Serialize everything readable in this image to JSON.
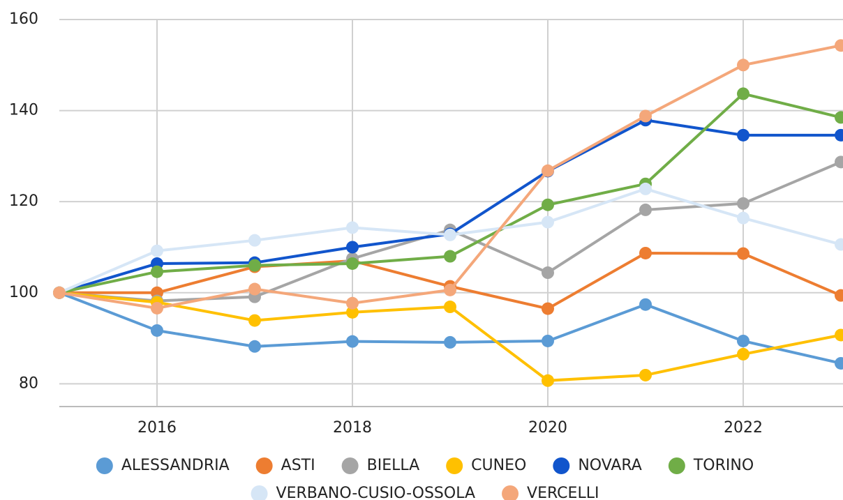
{
  "chart_data": {
    "type": "line",
    "x": [
      2015,
      2016,
      2017,
      2018,
      2019,
      2020,
      2021,
      2022,
      2023
    ],
    "xlim": [
      2015,
      2023
    ],
    "xticks": [
      2016,
      2018,
      2020,
      2022
    ],
    "ylim": [
      75,
      160
    ],
    "yticks": [
      80,
      100,
      120,
      140,
      160
    ],
    "grid": true,
    "legend": "bottom",
    "series": [
      {
        "name": "ALESSANDRIA",
        "color": "#5b9bd5",
        "values": [
          100,
          91.7,
          88.2,
          89.3,
          89.1,
          89.4,
          97.4,
          89.4,
          84.5
        ]
      },
      {
        "name": "ASTI",
        "color": "#ed7d31",
        "values": [
          100,
          100,
          105.7,
          107,
          101.4,
          96.5,
          108.7,
          108.6,
          99.4
        ]
      },
      {
        "name": "BIELLA",
        "color": "#a5a5a5",
        "values": [
          100,
          98.2,
          99.1,
          107.5,
          113.8,
          104.4,
          118.2,
          119.6,
          128.7
        ]
      },
      {
        "name": "CUNEO",
        "color": "#ffc000",
        "values": [
          100,
          97.9,
          93.9,
          95.7,
          96.9,
          80.7,
          81.9,
          86.5,
          90.7
        ]
      },
      {
        "name": "NOVARA",
        "color": "#1155cc",
        "values": [
          100,
          106.4,
          106.6,
          110,
          112.9,
          126.7,
          137.9,
          134.6,
          134.6
        ]
      },
      {
        "name": "TORINO",
        "color": "#70ad47",
        "values": [
          100,
          104.6,
          106,
          106.4,
          108,
          119.3,
          123.9,
          143.7,
          138.5
        ]
      },
      {
        "name": "VERBANO-CUSIO-OSSOLA",
        "color": "#d6e6f6",
        "values": [
          100,
          109.2,
          111.5,
          114.3,
          112.7,
          115.5,
          122.8,
          116.4,
          110.6
        ]
      },
      {
        "name": "VERCELLI",
        "color": "#f4a77a",
        "values": [
          100,
          96.6,
          100.8,
          97.7,
          100.6,
          126.8,
          138.8,
          150,
          154.3
        ]
      }
    ]
  }
}
